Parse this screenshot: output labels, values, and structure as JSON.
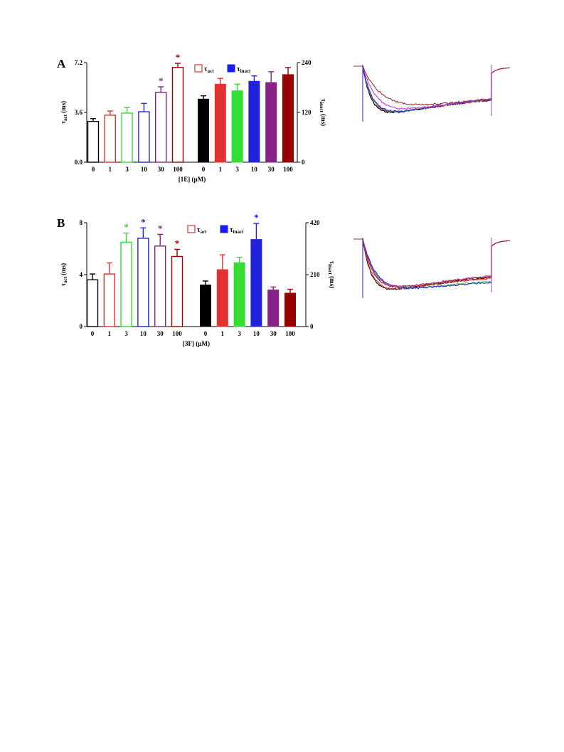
{
  "chart_data": [
    {
      "type": "bar",
      "panel_label": "A",
      "xlabel": "[1E] (µM)",
      "categories": [
        "0",
        "1",
        "3",
        "10",
        "30",
        "100"
      ],
      "colors": [
        "#000000",
        "#e53030",
        "#33dd33",
        "#2222dd",
        "#882288",
        "#990000"
      ],
      "left_axis": {
        "label_main": "τ",
        "label_sub": "act",
        "label_unit": "(ms)",
        "ylim": [
          0,
          7.2
        ],
        "ticks": [
          "0.0",
          "3.6",
          "7.2"
        ]
      },
      "right_axis": {
        "label_main": "τ",
        "label_sub": "inact",
        "label_unit": "(ms)",
        "ylim": [
          0,
          240
        ],
        "ticks": [
          "0",
          "120",
          "240"
        ]
      },
      "series": [
        {
          "name": "τact",
          "style": "open",
          "axis": "left",
          "values": [
            2.95,
            3.4,
            3.55,
            3.65,
            5.05,
            6.85
          ],
          "errors": [
            0.2,
            0.3,
            0.4,
            0.6,
            0.4,
            0.3
          ]
        },
        {
          "name": "τinact",
          "style": "filled",
          "axis": "right",
          "values": [
            152,
            188,
            172,
            195,
            192,
            211
          ],
          "errors": [
            8,
            14,
            16,
            13,
            26,
            17
          ]
        }
      ],
      "significance": [
        {
          "series": 0,
          "index": 4,
          "mark": "*"
        },
        {
          "series": 0,
          "index": 5,
          "mark": "*"
        }
      ],
      "legend": [
        {
          "label_main": "τ",
          "label_sub": "act",
          "style": "open"
        },
        {
          "label_main": "τ",
          "label_sub": "inact",
          "style": "filled"
        }
      ]
    },
    {
      "type": "bar",
      "panel_label": "B",
      "xlabel": "[3F] (µM)",
      "categories": [
        "0",
        "1",
        "3",
        "10",
        "30",
        "100"
      ],
      "colors": [
        "#000000",
        "#e53030",
        "#33dd33",
        "#2222dd",
        "#882288",
        "#990000"
      ],
      "left_axis": {
        "label_main": "τ",
        "label_sub": "act",
        "label_unit": "(ms)",
        "ylim": [
          0,
          8
        ],
        "ticks": [
          "0",
          "4",
          "8"
        ]
      },
      "right_axis": {
        "label_main": "τ",
        "label_sub": "inact",
        "label_unit": "(ms)",
        "ylim": [
          0,
          420
        ],
        "ticks": [
          "0",
          "210",
          "420"
        ]
      },
      "series": [
        {
          "name": "τact",
          "style": "open",
          "axis": "left",
          "values": [
            3.6,
            4.05,
            6.5,
            6.8,
            6.2,
            5.4
          ],
          "errors": [
            0.45,
            0.85,
            0.7,
            0.8,
            0.9,
            0.55
          ]
        },
        {
          "name": "τinact",
          "style": "filled",
          "axis": "right",
          "values": [
            168,
            230,
            258,
            352,
            148,
            135
          ],
          "errors": [
            16,
            60,
            22,
            65,
            12,
            16
          ]
        }
      ],
      "significance": [
        {
          "series": 0,
          "index": 2,
          "mark": "*"
        },
        {
          "series": 0,
          "index": 3,
          "mark": "*"
        },
        {
          "series": 0,
          "index": 4,
          "mark": "*"
        },
        {
          "series": 0,
          "index": 5,
          "mark": "*"
        },
        {
          "series": 1,
          "index": 3,
          "mark": "*"
        }
      ],
      "legend": [
        {
          "label_main": "τ",
          "label_sub": "act",
          "style": "open"
        },
        {
          "label_main": "τ",
          "label_sub": "inact",
          "style": "filled"
        }
      ]
    },
    {
      "type": "line",
      "description_role": "current-trace-inset-A",
      "trace_colors": [
        "#000000",
        "#e53030",
        "#33dd33",
        "#2222dd",
        "#cc33cc",
        "#993333"
      ],
      "trace_params": {
        "tau_act": [
          1.0,
          1.1,
          1.15,
          1.2,
          1.7,
          2.6
        ],
        "final_level": [
          0.58,
          0.58,
          0.59,
          0.59,
          0.6,
          0.61
        ]
      }
    },
    {
      "type": "line",
      "description_role": "current-trace-inset-B",
      "trace_colors": [
        "#000000",
        "#e53030",
        "#33dd33",
        "#2222dd",
        "#cc33cc",
        "#993333"
      ],
      "trace_params": {
        "tau_act": [
          1.0,
          1.1,
          1.5,
          1.6,
          1.4,
          1.3
        ],
        "final_level": [
          0.52,
          0.5,
          0.42,
          0.4,
          0.56,
          0.55
        ]
      }
    }
  ]
}
